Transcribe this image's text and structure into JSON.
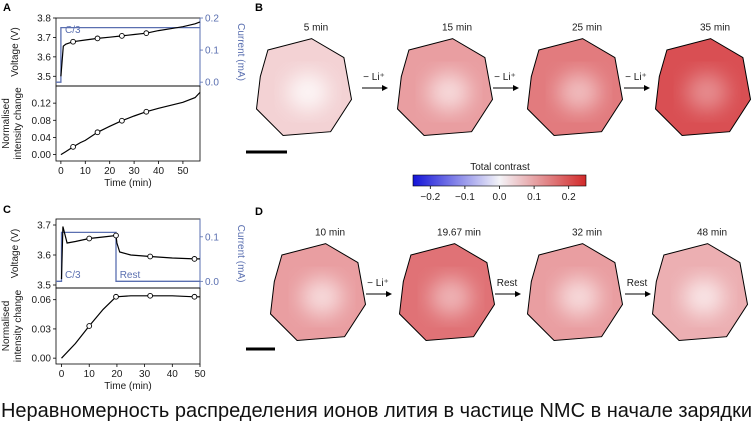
{
  "panel_letters": {
    "A": "A",
    "B": "B",
    "C": "C",
    "D": "D"
  },
  "colors": {
    "current": "#5a6fb0",
    "voltage": "#000000",
    "heat_low": "#1414d8",
    "heat_mid": "#f4f4f8",
    "heat_high": "#d22a2a"
  },
  "arrows": {
    "li": "− Li⁺",
    "rest": "Rest"
  },
  "colorbar": {
    "title": "Total contrast",
    "ticks": [
      "−0.2",
      "−0.1",
      "0.0",
      "0.1",
      "0.2"
    ],
    "range": [
      -0.25,
      0.25
    ]
  },
  "caption": "Неравномерность распределения ионов лития в частице NMC в начале зарядки",
  "chart_data": [
    {
      "id": "A-top",
      "type": "line",
      "ylabel": "Voltage (V)",
      "y2label": "Current (mA)",
      "ylim": [
        3.45,
        3.8
      ],
      "yticks": [
        "3.5",
        "3.6",
        "3.7",
        "3.8"
      ],
      "y2ticks": [
        "0.0",
        "0.1",
        "0.2"
      ],
      "y2lim": [
        -0.012,
        0.2
      ],
      "xlim": [
        -2,
        57
      ],
      "annotations": [
        "C/3"
      ],
      "series": [
        {
          "name": "voltage",
          "x": [
            0,
            1,
            2,
            5,
            10,
            15,
            20,
            25,
            30,
            35,
            40,
            45,
            50,
            55,
            57
          ],
          "y": [
            3.5,
            3.655,
            3.665,
            3.678,
            3.687,
            3.695,
            3.701,
            3.708,
            3.715,
            3.722,
            3.735,
            3.745,
            3.755,
            3.77,
            3.78
          ]
        },
        {
          "name": "current",
          "x": [
            -2,
            0,
            0,
            57
          ],
          "y": [
            0.0,
            0.0,
            0.17,
            0.17
          ]
        }
      ],
      "markers": {
        "x": [
          5,
          15,
          25,
          35
        ],
        "y": [
          3.678,
          3.695,
          3.708,
          3.722
        ]
      }
    },
    {
      "id": "A-bottom",
      "type": "line",
      "ylabel": "Normalised intensity change",
      "xlabel": "Time (min)",
      "xlim": [
        -2,
        57
      ],
      "ylim": [
        -0.015,
        0.16
      ],
      "xticks": [
        "0",
        "10",
        "20",
        "30",
        "40",
        "50"
      ],
      "yticks": [
        "0.00",
        "0.04",
        "0.08",
        "0.12"
      ],
      "series": [
        {
          "name": "intensity",
          "x": [
            0,
            2,
            5,
            8,
            10,
            15,
            20,
            25,
            30,
            35,
            40,
            45,
            50,
            55,
            57
          ],
          "y": [
            0.0,
            0.007,
            0.018,
            0.028,
            0.033,
            0.052,
            0.066,
            0.079,
            0.09,
            0.1,
            0.108,
            0.115,
            0.122,
            0.133,
            0.145
          ]
        }
      ],
      "markers": {
        "x": [
          5,
          15,
          25,
          35
        ],
        "y": [
          0.018,
          0.052,
          0.079,
          0.1
        ]
      }
    },
    {
      "id": "C-top",
      "type": "line",
      "ylabel": "Voltage (V)",
      "y2label": "Current (mA)",
      "ylim": [
        3.49,
        3.72
      ],
      "yticks": [
        "3.5",
        "3.6",
        "3.7"
      ],
      "y2ticks": [
        "0.0",
        "0.1"
      ],
      "y2lim": [
        -0.015,
        0.14
      ],
      "xlim": [
        -2,
        50
      ],
      "annotations": [
        "C/3",
        "Rest"
      ],
      "series": [
        {
          "name": "voltage",
          "x": [
            0,
            0.5,
            2,
            5,
            10,
            15,
            19.67,
            20,
            21,
            25,
            32,
            40,
            48,
            50
          ],
          "y": [
            3.52,
            3.695,
            3.64,
            3.645,
            3.655,
            3.66,
            3.665,
            3.64,
            3.61,
            3.6,
            3.595,
            3.59,
            3.587,
            3.587
          ]
        },
        {
          "name": "current",
          "x": [
            -2,
            0,
            0,
            19.67,
            19.67,
            50
          ],
          "y": [
            0.0,
            0.0,
            0.11,
            0.11,
            0.0,
            0.0
          ]
        }
      ],
      "markers": {
        "x": [
          10,
          19.67,
          32,
          48
        ],
        "y": [
          3.655,
          3.665,
          3.595,
          3.587
        ]
      }
    },
    {
      "id": "C-bottom",
      "type": "line",
      "ylabel": "Normalised intensity change",
      "xlabel": "Time (min)",
      "xlim": [
        -2,
        50
      ],
      "ylim": [
        -0.006,
        0.072
      ],
      "xticks": [
        "0",
        "10",
        "20",
        "30",
        "40",
        "50"
      ],
      "yticks": [
        "0.00",
        "0.03",
        "0.06"
      ],
      "series": [
        {
          "name": "intensity",
          "x": [
            0,
            5,
            10,
            15,
            19.67,
            25,
            32,
            40,
            48,
            50
          ],
          "y": [
            0.0,
            0.015,
            0.033,
            0.05,
            0.063,
            0.064,
            0.064,
            0.064,
            0.063,
            0.063
          ]
        }
      ],
      "markers": {
        "x": [
          10,
          19.67,
          32,
          48
        ],
        "y": [
          0.033,
          0.063,
          0.064,
          0.063
        ]
      }
    }
  ],
  "images_B": [
    {
      "label": "5 min",
      "level": 0.15
    },
    {
      "label": "15 min",
      "level": 0.45
    },
    {
      "label": "25 min",
      "level": 0.65
    },
    {
      "label": "35 min",
      "level": 0.9
    }
  ],
  "images_D": [
    {
      "label": "10 min",
      "level": 0.45
    },
    {
      "label": "19.67 min",
      "level": 0.7
    },
    {
      "label": "32 min",
      "level": 0.45
    },
    {
      "label": "48 min",
      "level": 0.35
    }
  ],
  "arrows_B": [
    "− Li⁺",
    "− Li⁺",
    "− Li⁺"
  ],
  "arrows_D": [
    "− Li⁺",
    "Rest",
    "Rest"
  ]
}
